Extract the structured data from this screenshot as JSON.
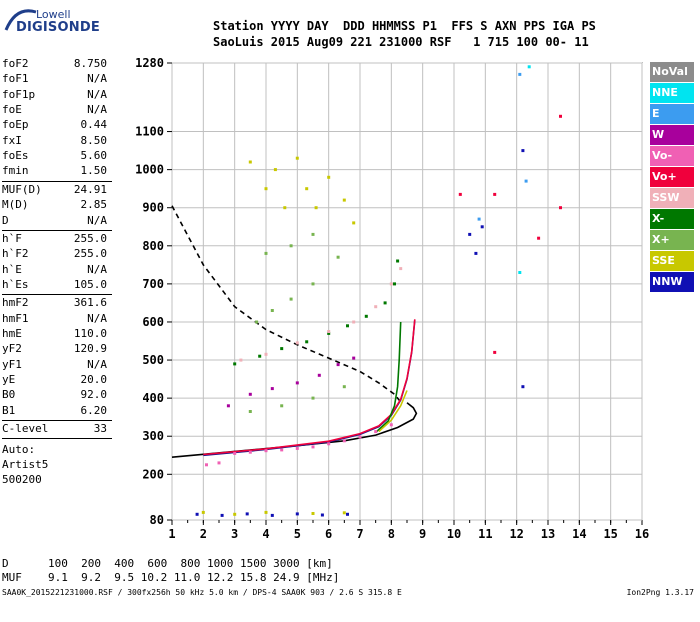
{
  "logo": {
    "line1": "Lowell",
    "line2": "DIGISONDE"
  },
  "header": {
    "row1": "Station YYYY DAY  DDD HHMMSS P1  FFS S AXN PPS IGA PS",
    "row2": "SaoLuis 2015 Aug09 221 231000 RSF   1 715 100 00- 11"
  },
  "params": [
    {
      "label": "foF2",
      "value": "8.750"
    },
    {
      "label": "foF1",
      "value": "N/A"
    },
    {
      "label": "foF1p",
      "value": "N/A"
    },
    {
      "label": "foE",
      "value": "N/A"
    },
    {
      "label": "foEp",
      "value": "0.44"
    },
    {
      "label": "fxI",
      "value": "8.50"
    },
    {
      "label": "foEs",
      "value": "5.60"
    },
    {
      "label": "fmin",
      "value": "1.50"
    },
    {
      "label": "MUF(D)",
      "value": "24.91"
    },
    {
      "label": "M(D)",
      "value": "2.85"
    },
    {
      "label": "D",
      "value": "N/A"
    },
    {
      "label": "h`F",
      "value": "255.0"
    },
    {
      "label": "h`F2",
      "value": "255.0"
    },
    {
      "label": "h`E",
      "value": "N/A"
    },
    {
      "label": "h`Es",
      "value": "105.0"
    },
    {
      "label": "hmF2",
      "value": "361.6"
    },
    {
      "label": "hmF1",
      "value": "N/A"
    },
    {
      "label": "hmE",
      "value": "110.0"
    },
    {
      "label": "yF2",
      "value": "120.9"
    },
    {
      "label": "yF1",
      "value": "N/A"
    },
    {
      "label": "yE",
      "value": "20.0"
    },
    {
      "label": "B0",
      "value": "92.0"
    },
    {
      "label": "B1",
      "value": "6.20"
    },
    {
      "label": "C-level",
      "value": "33"
    }
  ],
  "notes": [
    "Auto:",
    "Artist5",
    "500200"
  ],
  "legend": [
    {
      "label": "NoVal",
      "color": "#8c8c8c"
    },
    {
      "label": "NNE",
      "color": "#00e4f0"
    },
    {
      "label": "E",
      "color": "#3c9cf0"
    },
    {
      "label": "W",
      "color": "#a8009c"
    },
    {
      "label": "Vo-",
      "color": "#f060b4"
    },
    {
      "label": "Vo+",
      "color": "#f0003c"
    },
    {
      "label": "SSW",
      "color": "#f0b0b8"
    },
    {
      "label": "X-",
      "color": "#007800"
    },
    {
      "label": "X+",
      "color": "#78b450"
    },
    {
      "label": "SSE",
      "color": "#c8c800"
    },
    {
      "label": "NNW",
      "color": "#1010b4"
    }
  ],
  "bottom_table": {
    "d_label": "D",
    "d_values": "100  200  400  600  800 1000 1500 3000 [km]",
    "muf_label": "MUF",
    "muf_values": "9.1  9.2  9.5 10.2 11.0 12.2 15.8 24.9 [MHz]"
  },
  "footer": {
    "left": "SAA0K_2015221231000.RSF / 300fx256h 50 kHz 5.0 km / DPS-4 SAA0K 903 / 2.6 S 315.8 E",
    "right": "Ion2Png 1.3.17"
  },
  "chart_data": {
    "type": "scatter",
    "title": "",
    "xlabel": "",
    "ylabel": "",
    "xlim": [
      1,
      16
    ],
    "ylim": [
      80,
      1280
    ],
    "x_ticks": [
      1,
      2,
      3,
      4,
      5,
      6,
      7,
      8,
      9,
      10,
      11,
      12,
      13,
      14,
      15,
      16
    ],
    "y_ticks": [
      80,
      200,
      300,
      400,
      500,
      600,
      700,
      800,
      900,
      1000,
      1100,
      1280
    ],
    "grid": true,
    "legend_placement": "right",
    "series": [
      {
        "kind": "line",
        "style": "solid",
        "color": "#000000",
        "points": [
          [
            1.0,
            245
          ],
          [
            3.0,
            260
          ],
          [
            5.0,
            275
          ],
          [
            6.5,
            288
          ],
          [
            7.5,
            303
          ],
          [
            8.2,
            323
          ],
          [
            8.7,
            345
          ],
          [
            8.8,
            360
          ],
          [
            8.7,
            375
          ],
          [
            8.5,
            388
          ]
        ]
      },
      {
        "kind": "line",
        "style": "dashed",
        "color": "#000000",
        "points": [
          [
            1.0,
            905
          ],
          [
            2.0,
            750
          ],
          [
            3.0,
            640
          ],
          [
            4.0,
            580
          ],
          [
            5.0,
            540
          ],
          [
            6.0,
            505
          ],
          [
            7.0,
            470
          ],
          [
            7.6,
            440
          ],
          [
            8.1,
            410
          ],
          [
            8.3,
            390
          ]
        ]
      },
      {
        "kind": "line",
        "style": "solid",
        "color": "#1a1a8a",
        "points": [
          [
            2.0,
            250
          ],
          [
            4.0,
            265
          ],
          [
            6.0,
            285
          ],
          [
            7.0,
            305
          ],
          [
            7.6,
            325
          ],
          [
            8.0,
            355
          ],
          [
            8.3,
            395
          ],
          [
            8.5,
            450
          ],
          [
            8.65,
            520
          ],
          [
            8.75,
            605
          ]
        ]
      },
      {
        "kind": "line",
        "style": "solid",
        "color": "#f0003c",
        "points": [
          [
            2.0,
            252
          ],
          [
            4.0,
            267
          ],
          [
            6.0,
            287
          ],
          [
            7.0,
            307
          ],
          [
            7.6,
            327
          ],
          [
            8.0,
            357
          ],
          [
            8.3,
            397
          ],
          [
            8.5,
            452
          ],
          [
            8.65,
            522
          ],
          [
            8.75,
            607
          ]
        ]
      },
      {
        "kind": "line",
        "style": "solid",
        "color": "#007800",
        "points": [
          [
            7.5,
            310
          ],
          [
            7.9,
            340
          ],
          [
            8.1,
            380
          ],
          [
            8.2,
            430
          ],
          [
            8.25,
            500
          ],
          [
            8.3,
            600
          ]
        ]
      },
      {
        "kind": "line",
        "style": "solid",
        "color": "#c8c800",
        "points": [
          [
            7.6,
            312
          ],
          [
            8.0,
            342
          ],
          [
            8.3,
            380
          ],
          [
            8.5,
            420
          ]
        ]
      },
      {
        "kind": "scatter",
        "color": "#f060b4",
        "points": [
          [
            2.1,
            225
          ],
          [
            2.5,
            230
          ],
          [
            3.0,
            255
          ],
          [
            3.5,
            258
          ],
          [
            4.0,
            262
          ],
          [
            4.5,
            264
          ],
          [
            5.0,
            268
          ],
          [
            5.5,
            272
          ],
          [
            6.0,
            280
          ],
          [
            6.5,
            288
          ],
          [
            7.0,
            298
          ],
          [
            7.5,
            312
          ],
          [
            8.0,
            330
          ]
        ]
      },
      {
        "kind": "scatter",
        "color": "#a8009c",
        "points": [
          [
            2.8,
            380
          ],
          [
            3.5,
            410
          ],
          [
            4.2,
            425
          ],
          [
            5.0,
            440
          ],
          [
            5.7,
            460
          ],
          [
            6.3,
            488
          ],
          [
            6.8,
            505
          ]
        ]
      },
      {
        "kind": "scatter",
        "color": "#007800",
        "points": [
          [
            3.0,
            490
          ],
          [
            3.8,
            510
          ],
          [
            4.5,
            530
          ],
          [
            5.3,
            548
          ],
          [
            6.0,
            570
          ],
          [
            6.6,
            590
          ],
          [
            7.2,
            615
          ],
          [
            7.8,
            650
          ],
          [
            8.1,
            700
          ],
          [
            8.2,
            760
          ]
        ]
      },
      {
        "kind": "scatter",
        "color": "#f0b0b8",
        "points": [
          [
            3.2,
            500
          ],
          [
            4.0,
            515
          ],
          [
            5.0,
            545
          ],
          [
            6.0,
            575
          ],
          [
            6.8,
            600
          ],
          [
            7.5,
            640
          ],
          [
            8.0,
            700
          ],
          [
            8.3,
            740
          ]
        ]
      },
      {
        "kind": "scatter",
        "color": "#78b450",
        "points": [
          [
            3.5,
            365
          ],
          [
            4.5,
            380
          ],
          [
            5.5,
            400
          ],
          [
            6.5,
            430
          ],
          [
            3.7,
            600
          ],
          [
            4.2,
            630
          ],
          [
            4.8,
            660
          ],
          [
            5.5,
            700
          ],
          [
            6.3,
            770
          ],
          [
            4.0,
            780
          ],
          [
            4.8,
            800
          ],
          [
            5.5,
            830
          ]
        ]
      },
      {
        "kind": "scatter",
        "color": "#c8c800",
        "points": [
          [
            3.5,
            1020
          ],
          [
            4.0,
            950
          ],
          [
            4.3,
            1000
          ],
          [
            4.6,
            900
          ],
          [
            5.0,
            1030
          ],
          [
            5.3,
            950
          ],
          [
            5.6,
            900
          ],
          [
            6.0,
            980
          ],
          [
            6.5,
            920
          ],
          [
            6.8,
            860
          ],
          [
            2.0,
            100
          ],
          [
            3.0,
            95
          ],
          [
            4.0,
            100
          ],
          [
            5.5,
            97
          ],
          [
            6.5,
            99
          ]
        ]
      },
      {
        "kind": "scatter",
        "color": "#1010b4",
        "points": [
          [
            1.8,
            95
          ],
          [
            2.6,
            92
          ],
          [
            3.4,
            96
          ],
          [
            4.2,
            92
          ],
          [
            5.0,
            96
          ],
          [
            5.8,
            93
          ],
          [
            6.6,
            95
          ],
          [
            10.5,
            830
          ],
          [
            10.7,
            780
          ],
          [
            10.9,
            850
          ],
          [
            12.2,
            430
          ],
          [
            12.2,
            1050
          ]
        ]
      },
      {
        "kind": "scatter",
        "color": "#3c9cf0",
        "points": [
          [
            10.8,
            870
          ],
          [
            12.1,
            1250
          ],
          [
            12.3,
            970
          ]
        ]
      },
      {
        "kind": "scatter",
        "color": "#f0003c",
        "points": [
          [
            10.2,
            935
          ],
          [
            11.3,
            520
          ],
          [
            11.3,
            935
          ],
          [
            13.4,
            1140
          ],
          [
            13.4,
            900
          ],
          [
            12.7,
            820
          ]
        ]
      },
      {
        "kind": "scatter",
        "color": "#00e4f0",
        "points": [
          [
            12.4,
            1270
          ],
          [
            12.1,
            730
          ]
        ]
      }
    ]
  }
}
